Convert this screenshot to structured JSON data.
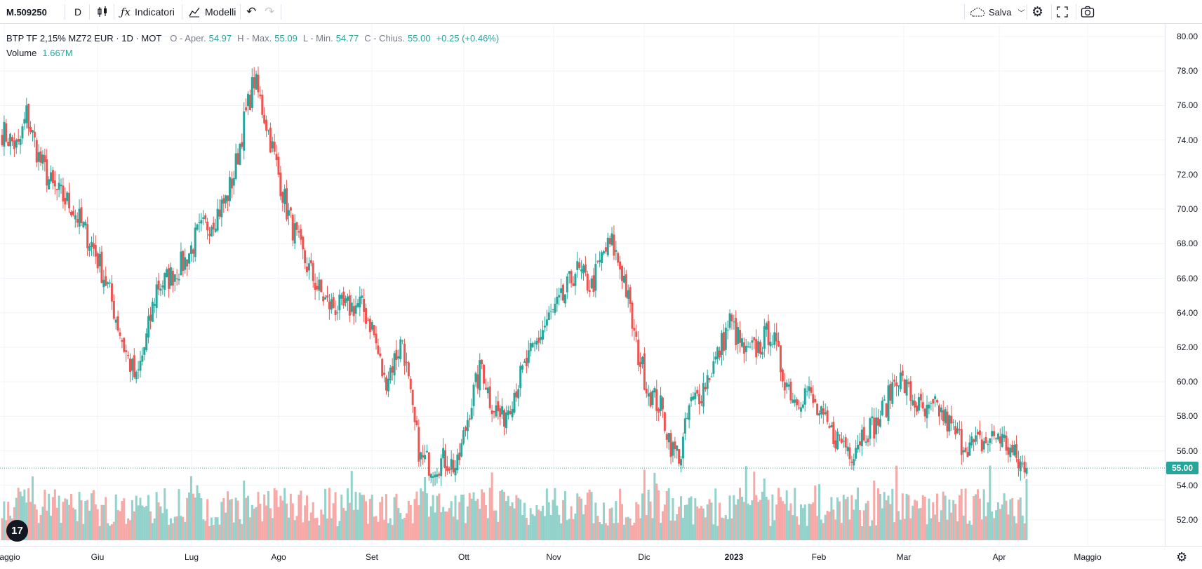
{
  "toolbar": {
    "symbol": "M.509250",
    "interval": "D",
    "indicators_label": "Indicatori",
    "templates_label": "Modelli",
    "save_label": "Salva"
  },
  "legend": {
    "title": "BTP TF 2,15% MZ72 EUR · 1D · MOT",
    "open_key": "O - Aper.",
    "open": "54.97",
    "high_key": "H - Max.",
    "high": "55.09",
    "low_key": "L - Min.",
    "low": "54.77",
    "close_key": "C - Chius.",
    "close": "55.00",
    "change": "+0.25 (+0.46%)",
    "volume_key": "Volume",
    "volume": "1.667M"
  },
  "price_axis": {
    "ticks": [
      "80.00",
      "78.00",
      "76.00",
      "74.00",
      "72.00",
      "70.00",
      "68.00",
      "66.00",
      "64.00",
      "62.00",
      "60.00",
      "58.00",
      "56.00",
      "54.00",
      "52.00"
    ],
    "last_price": "55.00"
  },
  "time_axis": {
    "labels": [
      "aggio",
      "Giu",
      "Lug",
      "Ago",
      "Set",
      "Ott",
      "Nov",
      "Dic",
      "2023",
      "Feb",
      "Mar",
      "Apr",
      "Maggio"
    ]
  },
  "colors": {
    "up": "#26a69a",
    "down": "#ef5350",
    "up_vol": "#93d2cb",
    "down_vol": "#f7a9a7",
    "grid": "#f0f3fa"
  },
  "chart_data": {
    "type": "candlestick",
    "y_min": 51,
    "y_max": 80.5,
    "anchors": [
      [
        0,
        74.5
      ],
      [
        8,
        73.5
      ],
      [
        12,
        75.5
      ],
      [
        18,
        73
      ],
      [
        25,
        71.2
      ],
      [
        34,
        70.2
      ],
      [
        44,
        68
      ],
      [
        52,
        65.5
      ],
      [
        60,
        62
      ],
      [
        66,
        60
      ],
      [
        71,
        62.5
      ],
      [
        76,
        65.5
      ],
      [
        82,
        66
      ],
      [
        90,
        67
      ],
      [
        96,
        68.5
      ],
      [
        104,
        69.5
      ],
      [
        110,
        70.5
      ],
      [
        114,
        72
      ],
      [
        119,
        75
      ],
      [
        124,
        77.5
      ],
      [
        130,
        75
      ],
      [
        136,
        72
      ],
      [
        140,
        70
      ],
      [
        147,
        67.5
      ],
      [
        155,
        65.5
      ],
      [
        160,
        64.5
      ],
      [
        168,
        64.2
      ],
      [
        176,
        64.5
      ],
      [
        182,
        63.2
      ],
      [
        188,
        60
      ],
      [
        192,
        61
      ],
      [
        197,
        62.5
      ],
      [
        202,
        58
      ],
      [
        206,
        55.5
      ],
      [
        212,
        55.2
      ],
      [
        218,
        55.5
      ],
      [
        224,
        55
      ],
      [
        230,
        58.5
      ],
      [
        236,
        61
      ],
      [
        240,
        59
      ],
      [
        246,
        57.8
      ],
      [
        252,
        59.5
      ],
      [
        258,
        61
      ],
      [
        262,
        62
      ],
      [
        268,
        63.5
      ],
      [
        276,
        64.8
      ],
      [
        282,
        66.5
      ],
      [
        290,
        65.5
      ],
      [
        296,
        67.5
      ],
      [
        300,
        68
      ],
      [
        306,
        66
      ],
      [
        312,
        62
      ],
      [
        318,
        59.5
      ],
      [
        324,
        58.5
      ],
      [
        330,
        56
      ],
      [
        334,
        55.8
      ],
      [
        338,
        58.5
      ],
      [
        344,
        59.5
      ],
      [
        352,
        61.5
      ],
      [
        358,
        63.5
      ],
      [
        362,
        62.5
      ],
      [
        366,
        61.5
      ],
      [
        372,
        62
      ],
      [
        378,
        63
      ],
      [
        384,
        60.5
      ],
      [
        390,
        59
      ],
      [
        396,
        59.5
      ],
      [
        402,
        58
      ],
      [
        408,
        57
      ],
      [
        414,
        56.5
      ],
      [
        418,
        56
      ],
      [
        424,
        57.2
      ],
      [
        430,
        57.5
      ],
      [
        436,
        59
      ],
      [
        440,
        60.5
      ],
      [
        448,
        59
      ],
      [
        454,
        58
      ],
      [
        460,
        58.5
      ],
      [
        466,
        57.5
      ],
      [
        472,
        56.5
      ],
      [
        478,
        56.3
      ],
      [
        484,
        56.5
      ],
      [
        490,
        57
      ],
      [
        496,
        56
      ],
      [
        500,
        55.3
      ],
      [
        504,
        55
      ]
    ],
    "volume_profile": "random volume bars, green on up days, red on down days"
  }
}
